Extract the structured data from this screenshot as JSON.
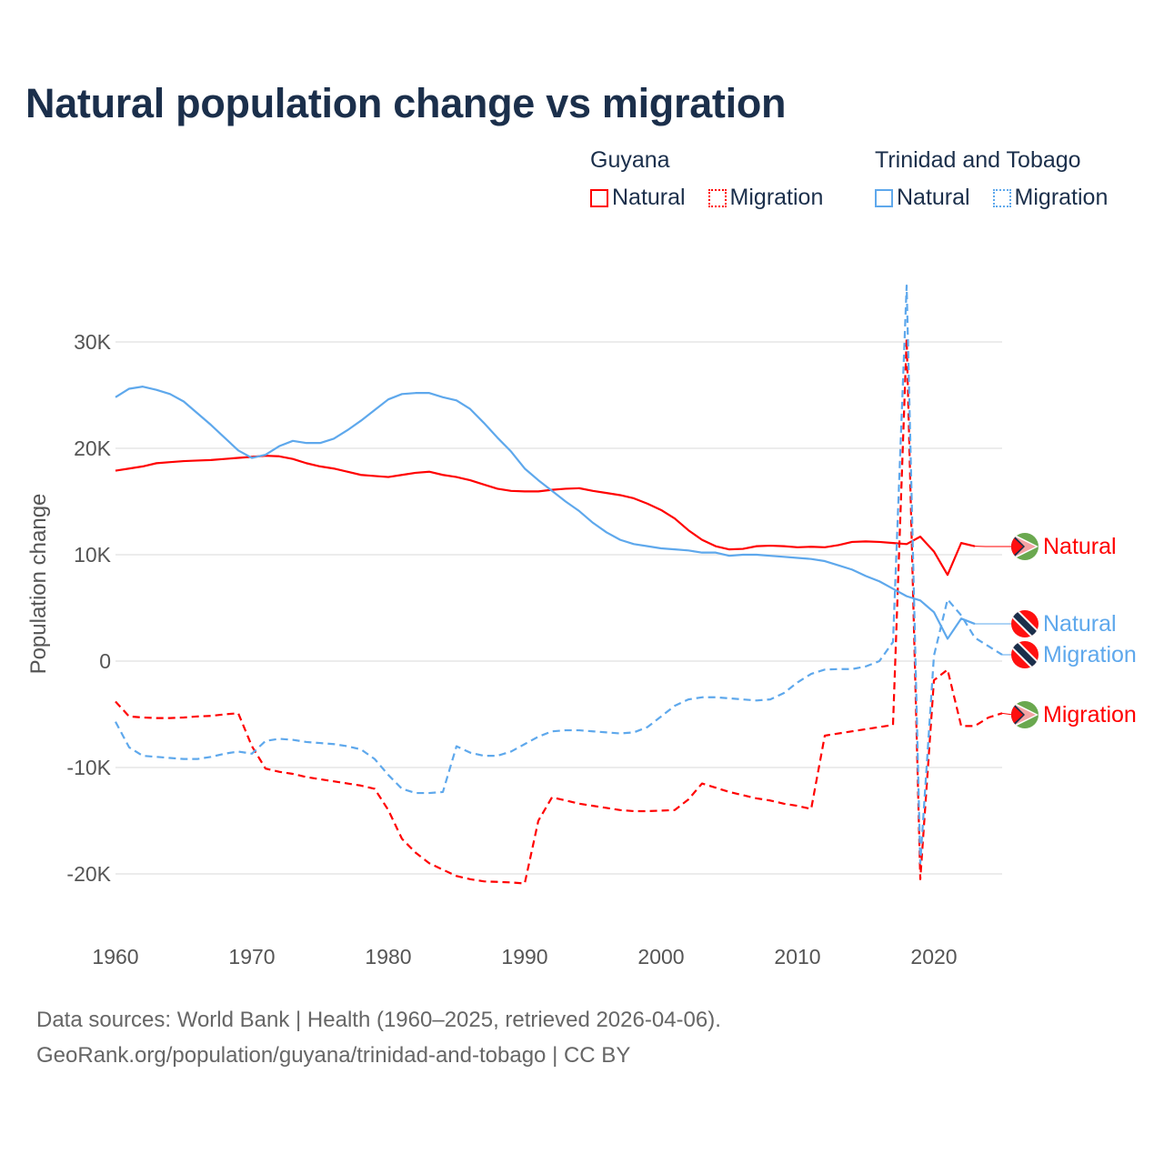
{
  "chart_data": {
    "type": "line",
    "title": "Natural population change vs migration",
    "xlabel": "",
    "ylabel": "Population change",
    "xlim": [
      1960,
      2025
    ],
    "ylim": [
      -25000,
      36000
    ],
    "x_ticks": [
      "1960",
      "1970",
      "1980",
      "1990",
      "2000",
      "2010",
      "2020"
    ],
    "y_ticks": [
      {
        "v": 30000,
        "label": "30K"
      },
      {
        "v": 20000,
        "label": "20K"
      },
      {
        "v": 10000,
        "label": "10K"
      },
      {
        "v": 0,
        "label": "0"
      },
      {
        "v": -10000,
        "label": "-10K"
      },
      {
        "v": -20000,
        "label": "-20K"
      }
    ],
    "grid": true,
    "legend_placement": "top-right",
    "legend_groups": [
      {
        "name": "Guyana",
        "items": [
          "Natural",
          "Migration"
        ]
      },
      {
        "name": "Trinidad and Tobago",
        "items": [
          "Natural",
          "Migration"
        ]
      }
    ],
    "series": [
      {
        "name": "Natural",
        "country": "Guyana",
        "color": "#ff0000",
        "dash": false,
        "start": 1960,
        "end_label": "Natural",
        "values": [
          17.9,
          18.1,
          18.3,
          18.6,
          18.7,
          18.8,
          18.85,
          18.9,
          19.0,
          19.1,
          19.2,
          19.3,
          19.25,
          19.0,
          18.6,
          18.3,
          18.1,
          17.8,
          17.5,
          17.4,
          17.3,
          17.5,
          17.7,
          17.8,
          17.5,
          17.3,
          17.0,
          16.6,
          16.2,
          16.0,
          15.95,
          15.95,
          16.1,
          16.2,
          16.25,
          16.0,
          15.8,
          15.6,
          15.3,
          14.8,
          14.2,
          13.4,
          12.3,
          11.4,
          10.8,
          10.5,
          10.55,
          10.8,
          10.85,
          10.8,
          10.7,
          10.75,
          10.7,
          10.9,
          11.2,
          11.25,
          11.2,
          11.1,
          11.0,
          11.7,
          10.3,
          8.1,
          11.1,
          10.8
        ]
      },
      {
        "name": "Migration",
        "country": "Guyana",
        "color": "#ff0000",
        "dash": true,
        "start": 1960,
        "end_label": "Migration",
        "values": [
          -3.8,
          -5.2,
          -5.3,
          -5.35,
          -5.35,
          -5.3,
          -5.2,
          -5.15,
          -5.0,
          -4.9,
          -8.0,
          -10.1,
          -10.4,
          -10.6,
          -10.9,
          -11.1,
          -11.3,
          -11.5,
          -11.7,
          -12.0,
          -14.0,
          -16.7,
          -18.0,
          -19.0,
          -19.6,
          -20.2,
          -20.5,
          -20.7,
          -20.75,
          -20.8,
          -20.9,
          -15.0,
          -12.8,
          -13.1,
          -13.4,
          -13.6,
          -13.8,
          -14.0,
          -14.1,
          -14.1,
          -14.05,
          -14.0,
          -13.0,
          -11.5,
          -11.9,
          -12.3,
          -12.6,
          -12.9,
          -13.1,
          -13.4,
          -13.6,
          -13.9,
          -7.0,
          -6.8,
          -6.6,
          -6.4,
          -6.2,
          -6.0,
          30.3,
          -20.5,
          -1.8,
          -0.8,
          -6.1,
          -6.1,
          -5.3,
          -4.9
        ]
      },
      {
        "name": "Natural",
        "country": "Trinidad and Tobago",
        "color": "#5ea8ec",
        "dash": false,
        "start": 1960,
        "end_label": "Natural",
        "values": [
          24.8,
          25.6,
          25.8,
          25.5,
          25.1,
          24.4,
          23.3,
          22.2,
          21.0,
          19.8,
          19.1,
          19.4,
          20.2,
          20.7,
          20.5,
          20.5,
          20.9,
          21.7,
          22.6,
          23.6,
          24.6,
          25.1,
          25.2,
          25.2,
          24.8,
          24.5,
          23.7,
          22.4,
          21.0,
          19.7,
          18.1,
          17.0,
          16.0,
          15.0,
          14.1,
          13.0,
          12.1,
          11.4,
          11.0,
          10.8,
          10.6,
          10.5,
          10.4,
          10.2,
          10.2,
          9.9,
          10.0,
          10.0,
          9.9,
          9.8,
          9.7,
          9.6,
          9.4,
          9.0,
          8.6,
          8.0,
          7.5,
          6.8,
          6.1,
          5.7,
          4.6,
          2.1,
          4.0,
          3.5
        ]
      },
      {
        "name": "Migration",
        "country": "Trinidad and Tobago",
        "color": "#5ea8ec",
        "dash": true,
        "start": 1960,
        "end_label": "Migration",
        "values": [
          -5.7,
          -8.1,
          -8.9,
          -9.0,
          -9.1,
          -9.2,
          -9.2,
          -9.0,
          -8.7,
          -8.5,
          -8.7,
          -7.5,
          -7.3,
          -7.4,
          -7.6,
          -7.7,
          -7.8,
          -8.0,
          -8.3,
          -9.2,
          -10.7,
          -12.0,
          -12.4,
          -12.4,
          -12.3,
          -8.0,
          -8.6,
          -8.9,
          -8.9,
          -8.5,
          -7.8,
          -7.1,
          -6.6,
          -6.5,
          -6.5,
          -6.6,
          -6.7,
          -6.8,
          -6.7,
          -6.2,
          -5.2,
          -4.2,
          -3.6,
          -3.4,
          -3.4,
          -3.5,
          -3.6,
          -3.7,
          -3.6,
          -3.0,
          -2.0,
          -1.2,
          -0.8,
          -0.75,
          -0.75,
          -0.5,
          0.0,
          1.8,
          35.3,
          -19.0,
          0.5,
          5.8,
          4.3,
          2.2,
          1.4,
          0.6
        ]
      }
    ],
    "values_unit": "thousands"
  },
  "footer": {
    "line1": "Data sources: World Bank | Health (1960–2025, retrieved 2026-04-06).",
    "line2": "GeoRank.org/population/guyana/trinidad-and-tobago | CC BY"
  }
}
